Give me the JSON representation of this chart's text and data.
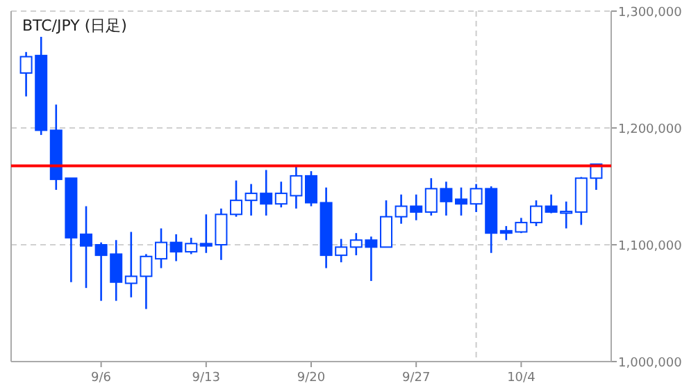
{
  "chart_data": {
    "type": "candlestick",
    "title": "BTC/JPY (日足)",
    "x": [
      "--09-01",
      "--09-02",
      "--09-03",
      "--09-04",
      "--09-05",
      "--09-06",
      "--09-07",
      "--09-08",
      "--09-09",
      "--09-10",
      "--09-11",
      "--09-12",
      "--09-13",
      "--09-14",
      "--09-15",
      "--09-16",
      "--09-17",
      "--09-18",
      "--09-19",
      "--09-20",
      "--09-21",
      "--09-22",
      "--09-23",
      "--09-24",
      "--09-25",
      "--09-26",
      "--09-27",
      "--09-28",
      "--09-29",
      "--09-30",
      "--10-01",
      "--10-02",
      "--10-03",
      "--10-04",
      "--10-05",
      "--10-06",
      "--10-07",
      "--10-08",
      "--10-09"
    ],
    "ohlc": [
      [
        1247000,
        1265000,
        1227000,
        1261000
      ],
      [
        1262000,
        1278000,
        1194000,
        1198000
      ],
      [
        1198000,
        1220000,
        1147000,
        1156000
      ],
      [
        1157000,
        1157000,
        1068000,
        1106000
      ],
      [
        1109000,
        1133000,
        1063000,
        1099000
      ],
      [
        1100000,
        1102000,
        1052000,
        1091000
      ],
      [
        1092000,
        1104000,
        1052000,
        1068000
      ],
      [
        1067000,
        1111000,
        1055000,
        1073000
      ],
      [
        1073000,
        1092000,
        1045000,
        1090000
      ],
      [
        1088000,
        1114000,
        1080000,
        1102000
      ],
      [
        1102000,
        1109000,
        1086000,
        1094000
      ],
      [
        1094000,
        1106000,
        1092000,
        1101000
      ],
      [
        1101000,
        1126000,
        1093000,
        1099000
      ],
      [
        1100000,
        1131000,
        1087000,
        1126000
      ],
      [
        1126000,
        1155000,
        1124000,
        1138000
      ],
      [
        1138000,
        1152000,
        1125000,
        1144000
      ],
      [
        1144000,
        1164000,
        1125000,
        1135000
      ],
      [
        1135000,
        1154000,
        1132000,
        1144000
      ],
      [
        1142000,
        1167500,
        1131000,
        1159000
      ],
      [
        1159000,
        1163000,
        1133000,
        1136000
      ],
      [
        1136000,
        1149000,
        1080000,
        1091000
      ],
      [
        1091000,
        1105000,
        1085000,
        1098000
      ],
      [
        1098000,
        1110000,
        1091000,
        1104000
      ],
      [
        1104000,
        1107000,
        1069000,
        1098000
      ],
      [
        1098000,
        1138000,
        1098000,
        1124000
      ],
      [
        1124000,
        1143000,
        1118000,
        1133000
      ],
      [
        1133000,
        1143000,
        1121000,
        1128000
      ],
      [
        1128000,
        1157000,
        1125000,
        1148000
      ],
      [
        1148000,
        1154000,
        1125000,
        1137000
      ],
      [
        1139000,
        1149000,
        1125000,
        1135000
      ],
      [
        1135000,
        1152000,
        1128000,
        1148000
      ],
      [
        1148000,
        1150000,
        1093000,
        1110000
      ],
      [
        1112000,
        1116000,
        1104000,
        1110000
      ],
      [
        1111000,
        1123000,
        1110000,
        1119000
      ],
      [
        1119000,
        1138000,
        1116000,
        1133000
      ],
      [
        1133000,
        1143000,
        1127000,
        1128000
      ],
      [
        1128000,
        1137000,
        1114000,
        1128500
      ],
      [
        1128000,
        1158000,
        1117000,
        1157000
      ],
      [
        1157000,
        1169000,
        1147000,
        1169000
      ]
    ],
    "color": "#0044ff",
    "xlim": [
      "--08-31",
      "--10-10"
    ],
    "xticks": [
      {
        "value": "--09-06",
        "label": "9/6"
      },
      {
        "value": "--09-13",
        "label": "9/13"
      },
      {
        "value": "--09-20",
        "label": "9/20"
      },
      {
        "value": "--09-27",
        "label": "9/27"
      },
      {
        "value": "--10-04",
        "label": "10/4"
      }
    ],
    "ylim": [
      1000000,
      1300000
    ],
    "yticks": [
      {
        "value": 1000000,
        "label": "1,000,000"
      },
      {
        "value": 1100000,
        "label": "1,100,000"
      },
      {
        "value": 1200000,
        "label": "1,200,000"
      },
      {
        "value": 1300000,
        "label": "1,300,000"
      }
    ],
    "grid": "y",
    "ref_lines": [
      {
        "axis": "y",
        "value": 1167500,
        "label": null,
        "color": "#ff0000",
        "line_style": "solid"
      },
      {
        "axis": "x",
        "value": "--10-01",
        "label": null,
        "color": "#cccccc",
        "line_style": "dashed"
      }
    ]
  }
}
